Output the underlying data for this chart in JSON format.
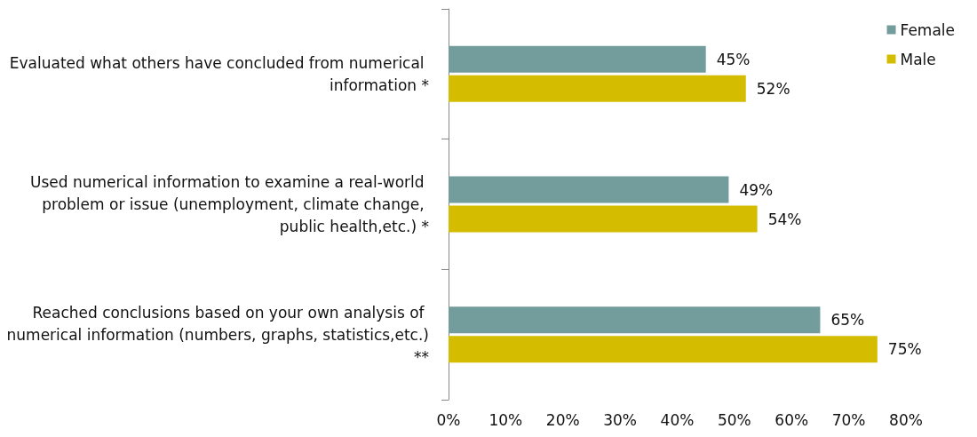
{
  "chart_data": {
    "type": "bar",
    "orientation": "horizontal",
    "categories": [
      "Evaluated what others have concluded from numerical information *",
      "Used numerical information to examine a real-world problem or issue (unemployment, climate change, public health,etc.) *",
      "Reached conclusions based on your own analysis of numerical information (numbers, graphs, statistics,etc.) **"
    ],
    "series": [
      {
        "name": "Female",
        "color": "#739d9d",
        "values": [
          45,
          49,
          65
        ],
        "value_labels": [
          "45%",
          "49%",
          "65%"
        ]
      },
      {
        "name": "Male",
        "color": "#d4bd00",
        "values": [
          52,
          54,
          75
        ],
        "value_labels": [
          "52%",
          "54%",
          "75%"
        ]
      }
    ],
    "xlim": [
      0,
      80
    ],
    "xticks": [
      {
        "value": 0,
        "label": "0%"
      },
      {
        "value": 10,
        "label": "10%"
      },
      {
        "value": 20,
        "label": "20%"
      },
      {
        "value": 30,
        "label": "30%"
      },
      {
        "value": 40,
        "label": "40%"
      },
      {
        "value": 50,
        "label": "50%"
      },
      {
        "value": 60,
        "label": "60%"
      },
      {
        "value": 70,
        "label": "70%"
      },
      {
        "value": 80,
        "label": "80%"
      }
    ],
    "grid": false,
    "legend": "top right"
  }
}
